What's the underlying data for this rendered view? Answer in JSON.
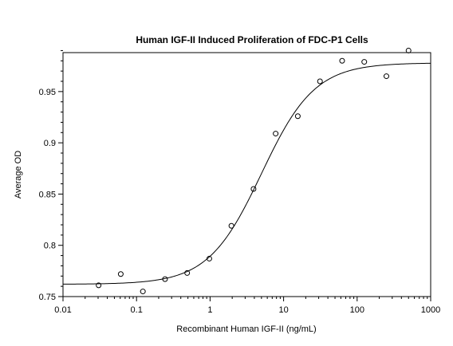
{
  "chart_data": {
    "type": "scatter",
    "title": "Human IGF-II Induced Proliferation of FDC-P1 Cells",
    "xlabel": "Recombinant Human IGF-II (ng/mL)",
    "ylabel": "Average OD",
    "x_scale": "log",
    "xlim": [
      0.01,
      1000
    ],
    "ylim": [
      0.75,
      0.988
    ],
    "x_ticks": [
      {
        "value": 0.01,
        "label": "0.01"
      },
      {
        "value": 0.1,
        "label": "0.1"
      },
      {
        "value": 1,
        "label": "1"
      },
      {
        "value": 10,
        "label": "10"
      },
      {
        "value": 100,
        "label": "100"
      },
      {
        "value": 1000,
        "label": "1000"
      }
    ],
    "y_ticks": [
      {
        "value": 0.75,
        "label": "0.75"
      },
      {
        "value": 0.8,
        "label": "0.8"
      },
      {
        "value": 0.85,
        "label": "0.85"
      },
      {
        "value": 0.9,
        "label": "0.9"
      },
      {
        "value": 0.95,
        "label": "0.95"
      }
    ],
    "grid": false,
    "legend": "none",
    "points": [
      {
        "x": 0.0305,
        "y": 0.761
      },
      {
        "x": 0.061,
        "y": 0.772
      },
      {
        "x": 0.122,
        "y": 0.755
      },
      {
        "x": 0.244,
        "y": 0.767
      },
      {
        "x": 0.488,
        "y": 0.773
      },
      {
        "x": 0.977,
        "y": 0.787
      },
      {
        "x": 1.95,
        "y": 0.819
      },
      {
        "x": 3.9,
        "y": 0.855
      },
      {
        "x": 7.8,
        "y": 0.909
      },
      {
        "x": 15.6,
        "y": 0.926
      },
      {
        "x": 31.25,
        "y": 0.96
      },
      {
        "x": 62.5,
        "y": 0.98
      },
      {
        "x": 125,
        "y": 0.979
      },
      {
        "x": 250,
        "y": 0.965
      },
      {
        "x": 500,
        "y": 0.99
      }
    ],
    "fit": {
      "model": "4PL",
      "bottom": 0.762,
      "top": 0.978,
      "ec50": 5.0,
      "hill": 1.2
    },
    "marker_color": "#000000",
    "line_color": "#000000"
  }
}
